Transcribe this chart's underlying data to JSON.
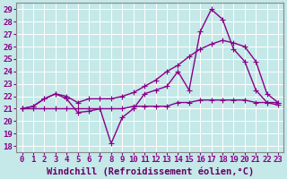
{
  "title": "",
  "xlabel": "Windchill (Refroidissement éolien,°C)",
  "bg_color": "#c5e8e8",
  "plot_bg_color": "#c5e8e8",
  "grid_color": "#ffffff",
  "line_color": "#880088",
  "x_ticks": [
    0,
    1,
    2,
    3,
    4,
    5,
    6,
    7,
    8,
    9,
    10,
    11,
    12,
    13,
    14,
    15,
    16,
    17,
    18,
    19,
    20,
    21,
    22,
    23
  ],
  "ylim": [
    17.5,
    29.5
  ],
  "xlim": [
    -0.5,
    23.5
  ],
  "yticks": [
    18,
    19,
    20,
    21,
    22,
    23,
    24,
    25,
    26,
    27,
    28,
    29
  ],
  "line1_x": [
    0,
    1,
    2,
    3,
    4,
    5,
    6,
    7,
    8,
    9,
    10,
    11,
    12,
    13,
    14,
    15,
    16,
    17,
    18,
    19,
    20,
    21,
    22,
    23
  ],
  "line1_y": [
    21.0,
    21.2,
    21.8,
    22.2,
    21.8,
    20.7,
    20.8,
    21.0,
    18.2,
    20.3,
    21.0,
    22.2,
    22.5,
    22.8,
    24.0,
    22.5,
    27.2,
    29.0,
    28.2,
    25.8,
    24.8,
    22.5,
    21.5,
    21.5
  ],
  "line2_x": [
    0,
    1,
    2,
    3,
    4,
    5,
    6,
    7,
    8,
    9,
    10,
    11,
    12,
    13,
    14,
    15,
    16,
    17,
    18,
    19,
    20,
    21,
    22,
    23
  ],
  "line2_y": [
    21.0,
    21.0,
    21.0,
    21.0,
    21.0,
    21.0,
    21.0,
    21.0,
    21.0,
    21.0,
    21.2,
    21.2,
    21.2,
    21.2,
    21.5,
    21.5,
    21.7,
    21.7,
    21.7,
    21.7,
    21.7,
    21.5,
    21.5,
    21.3
  ],
  "line3_x": [
    0,
    1,
    2,
    3,
    4,
    5,
    6,
    7,
    8,
    9,
    10,
    11,
    12,
    13,
    14,
    15,
    16,
    17,
    18,
    19,
    20,
    21,
    22,
    23
  ],
  "line3_y": [
    21.0,
    21.2,
    21.8,
    22.2,
    22.0,
    21.5,
    21.8,
    21.8,
    21.8,
    22.0,
    22.3,
    22.8,
    23.3,
    24.0,
    24.5,
    25.2,
    25.8,
    26.2,
    26.5,
    26.3,
    26.0,
    24.8,
    22.2,
    21.5
  ],
  "marker": "D",
  "markersize": 3,
  "linewidth": 1.0,
  "tick_fontsize": 6.5,
  "xlabel_fontsize": 7.5
}
